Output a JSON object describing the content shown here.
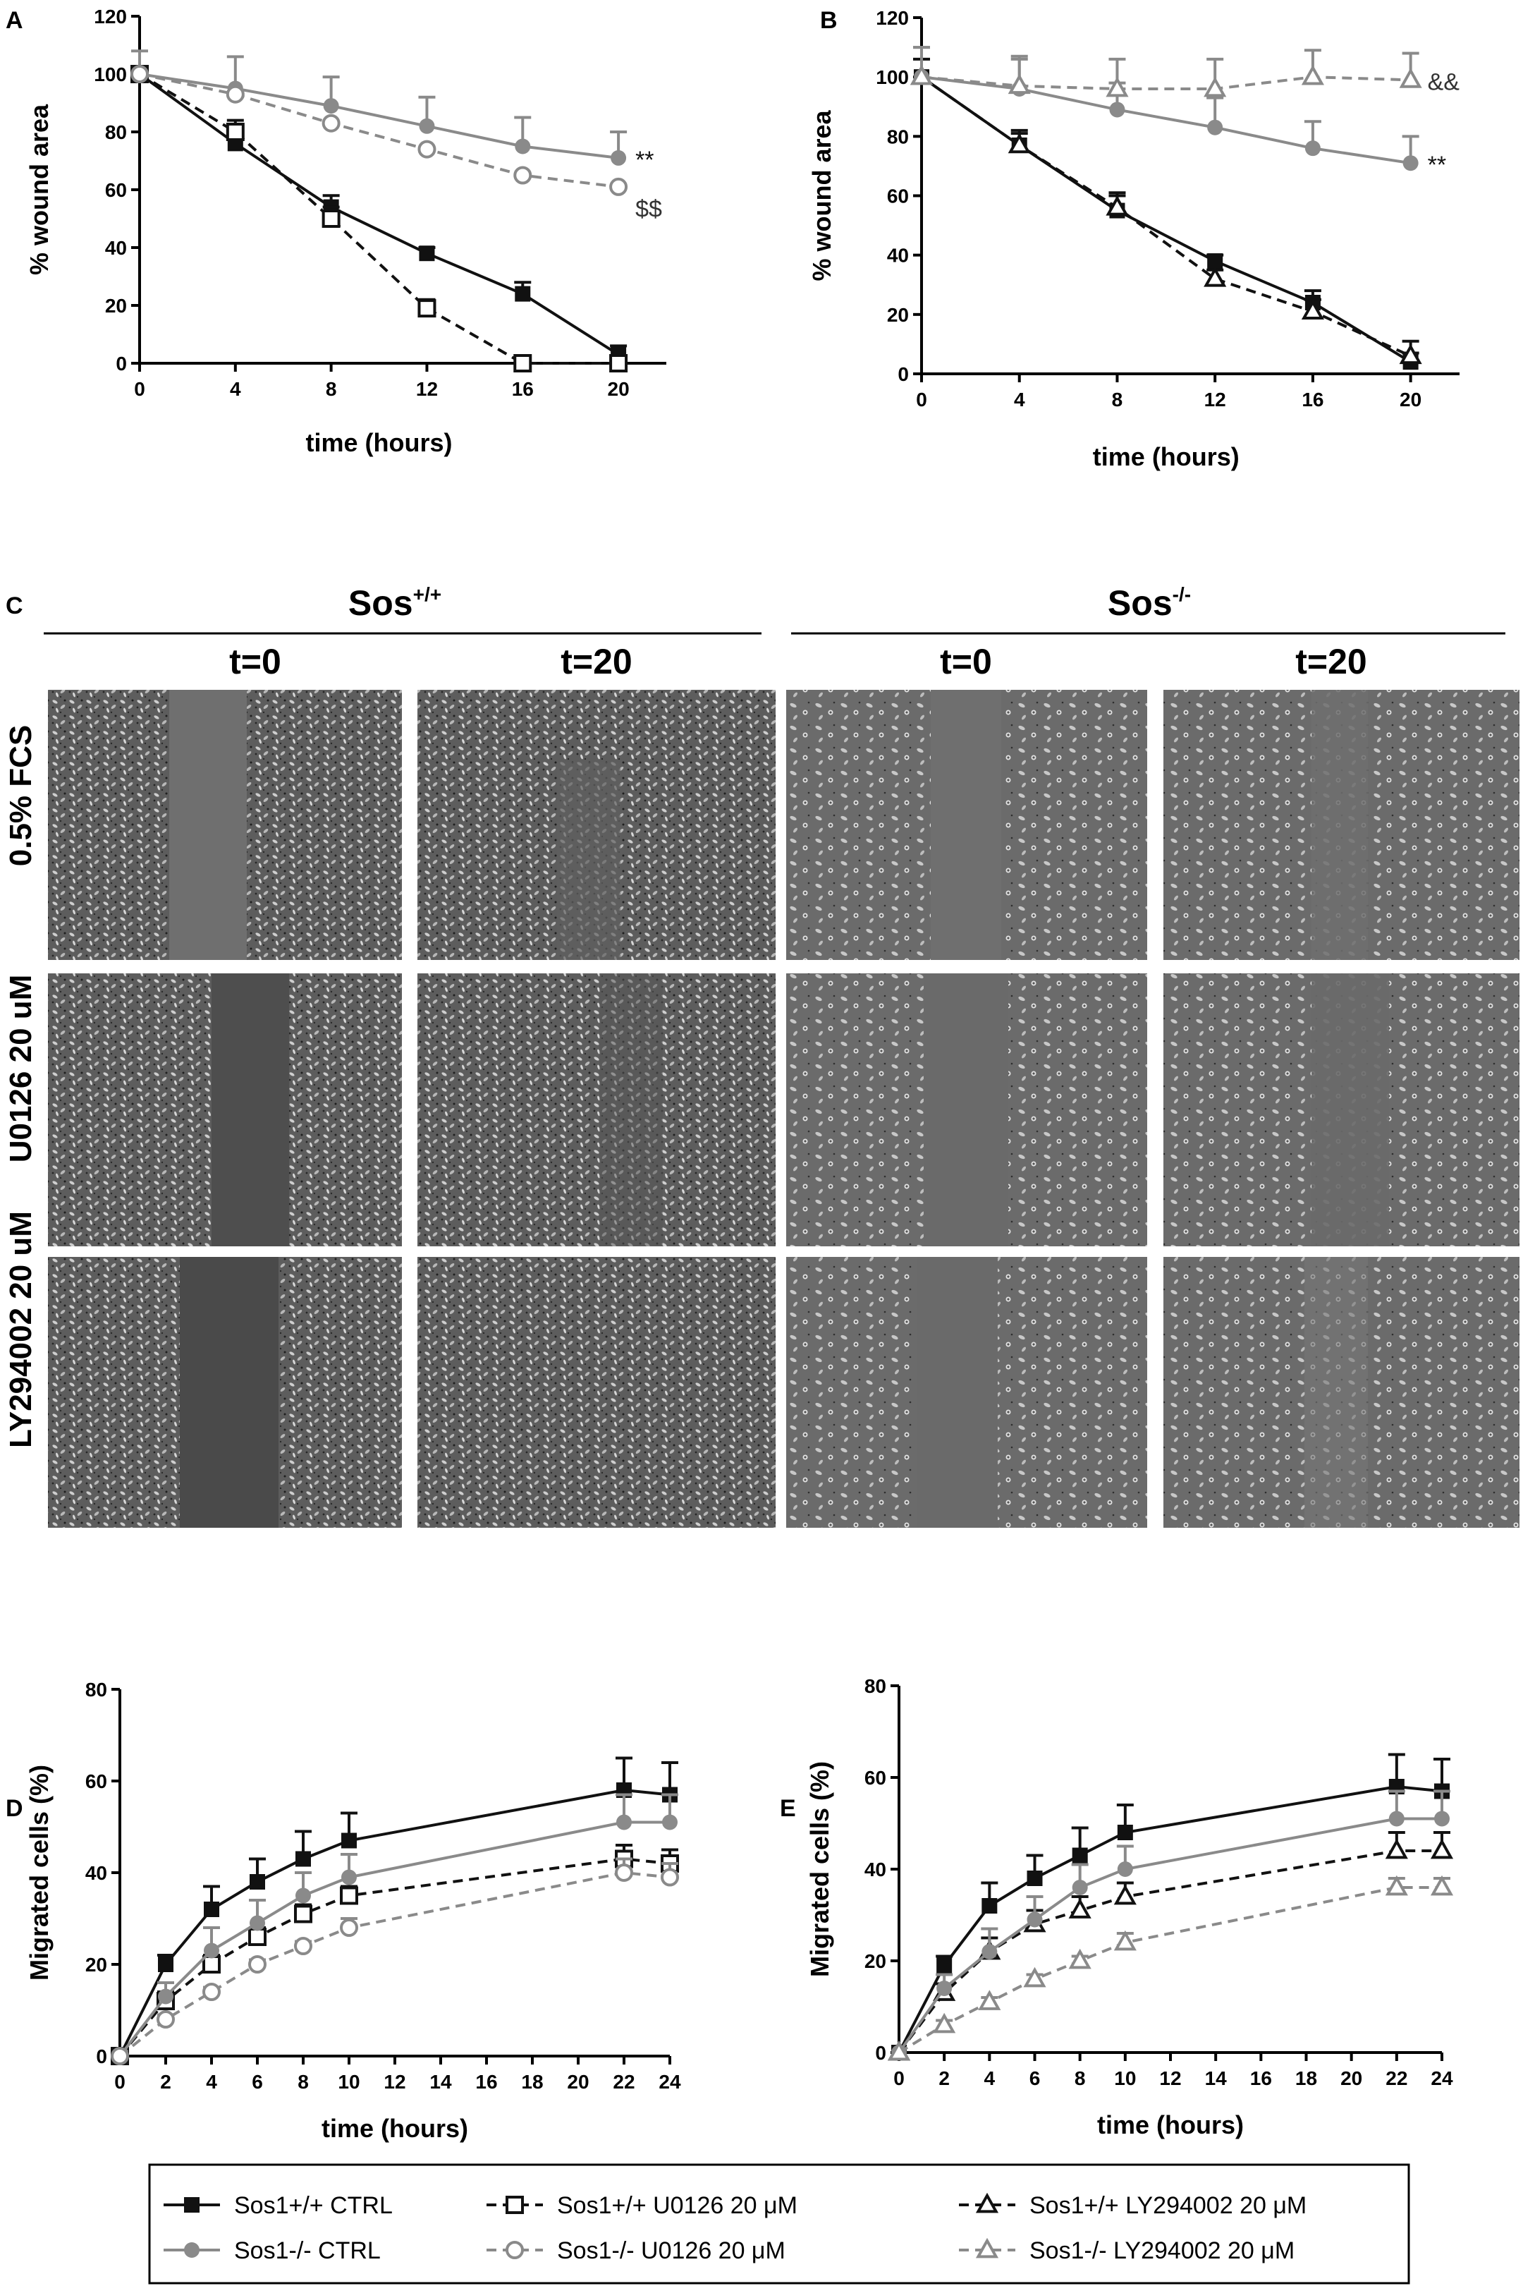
{
  "colors": {
    "black_series": "#111111",
    "gray_series": "#8a8a8a",
    "micro_bg": "#6e6e6e"
  },
  "chart_data": [
    {
      "panel": "A",
      "type": "line",
      "ylabel": "% wound area",
      "xlabel": "time (hours)",
      "xlim": [
        0,
        22
      ],
      "ylim": [
        0,
        120
      ],
      "xticks": [
        0,
        4,
        8,
        12,
        16,
        20
      ],
      "yticks": [
        0,
        20,
        40,
        60,
        80,
        100,
        120
      ],
      "series": [
        {
          "name": "Sos1+/+ CTRL",
          "x": [
            0,
            4,
            8,
            12,
            16,
            20
          ],
          "y": [
            100,
            76,
            54,
            38,
            24,
            3
          ],
          "err": [
            0,
            4,
            4,
            2,
            4,
            3
          ],
          "color": "black",
          "dash": false,
          "marker": "square-filled"
        },
        {
          "name": "Sos1+/+ U0126 20 μM",
          "x": [
            0,
            4,
            8,
            12,
            16,
            20
          ],
          "y": [
            100,
            80,
            50,
            19,
            0,
            0
          ],
          "err": [
            0,
            4,
            4,
            3,
            0,
            0
          ],
          "color": "black",
          "dash": true,
          "marker": "square-open"
        },
        {
          "name": "Sos1-/- CTRL",
          "x": [
            0,
            4,
            8,
            12,
            16,
            20
          ],
          "y": [
            100,
            95,
            89,
            82,
            75,
            71
          ],
          "err": [
            8,
            11,
            10,
            10,
            10,
            9
          ],
          "color": "gray",
          "dash": false,
          "marker": "circle-filled"
        },
        {
          "name": "Sos1-/- U0126 20 μM",
          "x": [
            0,
            4,
            8,
            12,
            16,
            20
          ],
          "y": [
            100,
            93,
            83,
            74,
            65,
            61
          ],
          "err": [
            0,
            0,
            0,
            0,
            0,
            0
          ],
          "color": "gray",
          "dash": true,
          "marker": "circle-open"
        }
      ],
      "annotations": [
        {
          "text": "**",
          "x": 20,
          "y": 71
        },
        {
          "text": "$$",
          "x": 20,
          "y": 54
        }
      ]
    },
    {
      "panel": "B",
      "type": "line",
      "ylabel": "% wound area",
      "xlabel": "time (hours)",
      "xlim": [
        0,
        22
      ],
      "ylim": [
        0,
        120
      ],
      "xticks": [
        0,
        4,
        8,
        12,
        16,
        20
      ],
      "yticks": [
        0,
        20,
        40,
        60,
        80,
        100,
        120
      ],
      "series": [
        {
          "name": "Sos1+/+ CTRL",
          "x": [
            0,
            4,
            8,
            12,
            16,
            20
          ],
          "y": [
            100,
            77,
            55,
            38,
            24,
            4
          ],
          "err": [
            6,
            5,
            5,
            2,
            4,
            3
          ],
          "color": "black",
          "dash": false,
          "marker": "square-filled"
        },
        {
          "name": "Sos1+/+ LY294002 20 μM",
          "x": [
            0,
            4,
            8,
            12,
            16,
            20
          ],
          "y": [
            100,
            77,
            56,
            32,
            21,
            6
          ],
          "err": [
            0,
            4,
            5,
            3,
            4,
            5
          ],
          "color": "black",
          "dash": true,
          "marker": "triangle-open"
        },
        {
          "name": "Sos1-/- CTRL",
          "x": [
            0,
            4,
            8,
            12,
            16,
            20
          ],
          "y": [
            100,
            96,
            89,
            83,
            76,
            71
          ],
          "err": [
            10,
            10,
            9,
            10,
            9,
            9
          ],
          "color": "gray",
          "dash": false,
          "marker": "circle-filled"
        },
        {
          "name": "Sos1-/- LY294002 20 μM",
          "x": [
            0,
            4,
            8,
            12,
            16,
            20
          ],
          "y": [
            100,
            97,
            96,
            96,
            100,
            99
          ],
          "err": [
            10,
            10,
            10,
            10,
            9,
            9
          ],
          "color": "gray",
          "dash": true,
          "marker": "triangle-open"
        }
      ],
      "annotations": [
        {
          "text": "&&",
          "x": 20,
          "y": 99
        },
        {
          "text": "**",
          "x": 20,
          "y": 71
        }
      ]
    },
    {
      "panel": "D",
      "type": "line",
      "ylabel": "Migrated cells (%)",
      "xlabel": "time (hours)",
      "xlim": [
        0,
        24
      ],
      "ylim": [
        0,
        80
      ],
      "xticks": [
        0,
        2,
        4,
        6,
        8,
        10,
        12,
        14,
        16,
        18,
        20,
        22,
        24
      ],
      "yticks": [
        0,
        20,
        40,
        60,
        80
      ],
      "series": [
        {
          "name": "Sos1+/+ CTRL",
          "x": [
            0,
            2,
            4,
            6,
            8,
            10,
            22,
            24
          ],
          "y": [
            0,
            20,
            32,
            38,
            43,
            47,
            58,
            57
          ],
          "err": [
            0,
            2,
            5,
            5,
            6,
            6,
            7,
            7
          ],
          "color": "black",
          "dash": false,
          "marker": "square-filled"
        },
        {
          "name": "Sos1+/+ U0126 20 μM",
          "x": [
            0,
            2,
            4,
            6,
            8,
            10,
            22,
            24
          ],
          "y": [
            0,
            12,
            20,
            26,
            31,
            35,
            43,
            42
          ],
          "err": [
            0,
            2,
            2,
            2,
            2,
            2,
            3,
            3
          ],
          "color": "black",
          "dash": true,
          "marker": "square-open"
        },
        {
          "name": "Sos1-/- CTRL",
          "x": [
            0,
            2,
            4,
            6,
            8,
            10,
            22,
            24
          ],
          "y": [
            0,
            13,
            23,
            29,
            35,
            39,
            51,
            51
          ],
          "err": [
            0,
            3,
            5,
            5,
            5,
            5,
            6,
            6
          ],
          "color": "gray",
          "dash": false,
          "marker": "circle-filled"
        },
        {
          "name": "Sos1-/- U0126 20 μM",
          "x": [
            0,
            2,
            4,
            6,
            8,
            10,
            22,
            24
          ],
          "y": [
            0,
            8,
            14,
            20,
            24,
            28,
            40,
            39
          ],
          "err": [
            0,
            1,
            1,
            1,
            1,
            2,
            3,
            3
          ],
          "color": "gray",
          "dash": true,
          "marker": "circle-open"
        }
      ]
    },
    {
      "panel": "E",
      "type": "line",
      "ylabel": "Migrated cells (%)",
      "xlabel": "time (hours)",
      "xlim": [
        0,
        24
      ],
      "ylim": [
        0,
        80
      ],
      "xticks": [
        0,
        2,
        4,
        6,
        8,
        10,
        12,
        14,
        16,
        18,
        20,
        22,
        24
      ],
      "yticks": [
        0,
        20,
        40,
        60,
        80
      ],
      "series": [
        {
          "name": "Sos1+/+ CTRL",
          "x": [
            0,
            2,
            4,
            6,
            8,
            10,
            22,
            24
          ],
          "y": [
            0,
            19,
            32,
            38,
            43,
            48,
            58,
            57
          ],
          "err": [
            0,
            2,
            5,
            5,
            6,
            6,
            7,
            7
          ],
          "color": "black",
          "dash": false,
          "marker": "square-filled"
        },
        {
          "name": "Sos1+/+ LY294002 20 μM",
          "x": [
            0,
            2,
            4,
            6,
            8,
            10,
            22,
            24
          ],
          "y": [
            0,
            13,
            22,
            28,
            31,
            34,
            44,
            44
          ],
          "err": [
            0,
            2,
            3,
            3,
            3,
            3,
            4,
            4
          ],
          "color": "black",
          "dash": true,
          "marker": "triangle-open"
        },
        {
          "name": "Sos1-/- CTRL",
          "x": [
            0,
            2,
            4,
            6,
            8,
            10,
            22,
            24
          ],
          "y": [
            0,
            14,
            22,
            29,
            36,
            40,
            51,
            51
          ],
          "err": [
            0,
            3,
            5,
            5,
            5,
            5,
            6,
            6
          ],
          "color": "gray",
          "dash": false,
          "marker": "circle-filled"
        },
        {
          "name": "Sos1-/- LY294002 20 μM",
          "x": [
            0,
            2,
            4,
            6,
            8,
            10,
            22,
            24
          ],
          "y": [
            0,
            6,
            11,
            16,
            20,
            24,
            36,
            36
          ],
          "err": [
            0,
            1,
            1,
            1,
            1,
            2,
            2,
            2
          ],
          "color": "gray",
          "dash": true,
          "marker": "triangle-open"
        }
      ]
    }
  ],
  "panel_c": {
    "letter": "C",
    "group_left": {
      "base": "Sos",
      "sup": "+/+"
    },
    "group_right": {
      "base": "Sos",
      "sup": "-/-"
    },
    "col_labels": [
      "t=0",
      "t=20",
      "t=0",
      "t=20"
    ],
    "row_labels": [
      "0.5% FCS",
      "U0126 20 uM",
      "LY294002 20 uM"
    ]
  },
  "legend": {
    "items": [
      {
        "label": "Sos1+/+ CTRL",
        "color": "black",
        "dash": false,
        "marker": "square-filled"
      },
      {
        "label": "Sos1+/+ U0126 20 μM",
        "color": "black",
        "dash": true,
        "marker": "square-open"
      },
      {
        "label": "Sos1+/+ LY294002 20 μM",
        "color": "black",
        "dash": true,
        "marker": "triangle-open"
      },
      {
        "label": "Sos1-/- CTRL",
        "color": "gray",
        "dash": false,
        "marker": "circle-filled"
      },
      {
        "label": "Sos1-/- U0126 20 μM",
        "color": "gray",
        "dash": true,
        "marker": "circle-open"
      },
      {
        "label": "Sos1-/- LY294002 20 μM",
        "color": "gray",
        "dash": true,
        "marker": "triangle-open"
      }
    ]
  }
}
